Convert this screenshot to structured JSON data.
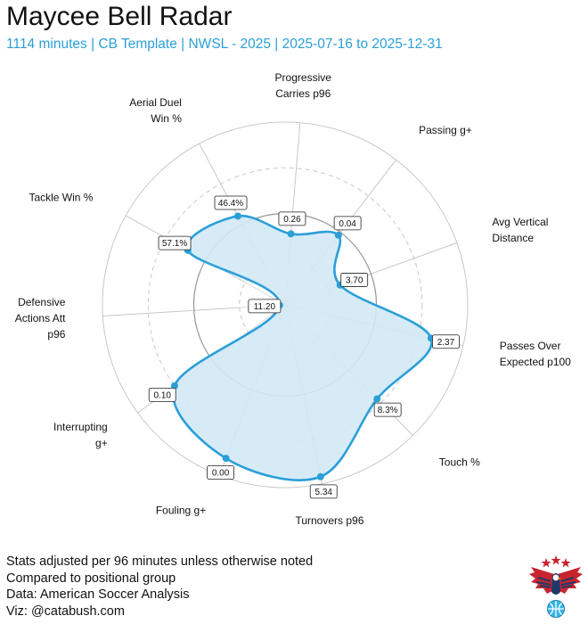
{
  "title": "Maycee Bell Radar",
  "subtitle": "1114 minutes | CB Template | NWSL - 2025 | 2025-07-16 to 2025-12-31",
  "footer": {
    "line1": "Stats adjusted per 96 minutes unless otherwise noted",
    "line2": "Compared to positional group",
    "line3": "Data: American Soccer Analysis",
    "line4": "Viz: @catabush.com"
  },
  "colors": {
    "accent": "#2a9fd8",
    "fill": "#d3e9f6",
    "grid": "#c8c8c8",
    "title": "#111111"
  },
  "chart_data": {
    "type": "radar",
    "scale": "percentile",
    "rlim": [
      0,
      100
    ],
    "grid_rings": [
      25,
      50,
      75,
      100
    ],
    "dashed_rings": [
      25,
      75
    ],
    "metrics": [
      {
        "label": "Progressive Carries p96",
        "value_label": "0.26",
        "percentile": 39
      },
      {
        "label": "Passing g+",
        "value_label": "0.04",
        "percentile": 48
      },
      {
        "label": "Avg Vertical Distance",
        "value_label": "3.70",
        "percentile": 32
      },
      {
        "label": "Passes Over Expected p100",
        "value_label": "2.37",
        "percentile": 82
      },
      {
        "label": "Touch %",
        "value_label": "8.3%",
        "percentile": 72
      },
      {
        "label": "Turnovers p96",
        "value_label": "5.34",
        "percentile": 96
      },
      {
        "label": "Fouling g+",
        "value_label": "0.00",
        "percentile": 90
      },
      {
        "label": "Interrupting g+",
        "value_label": "0.10",
        "percentile": 75
      },
      {
        "label": "Defensive Actions Att p96",
        "value_label": "11.20",
        "percentile": 3
      },
      {
        "label": "Tackle Win %",
        "value_label": "57.1%",
        "percentile": 61
      },
      {
        "label": "Aerial Duel Win %",
        "value_label": "46.4%",
        "percentile": 55
      }
    ]
  }
}
